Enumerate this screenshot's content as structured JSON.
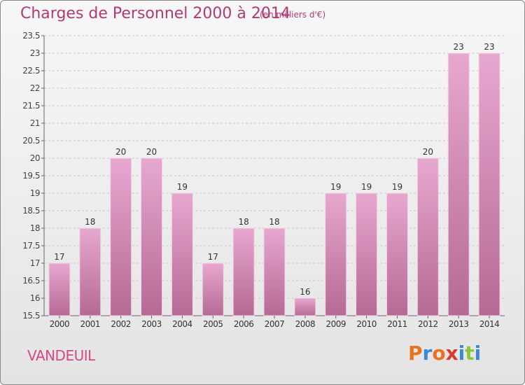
{
  "title": "Charges de Personnel 2000 à 2014",
  "subtitle": "(en milliers d'€)",
  "commune": "VANDEUIL",
  "logo": {
    "text": "Proxiti",
    "colors": [
      "#e8731f",
      "#3a88d8",
      "#e8731f",
      "#d93a2a",
      "#3a88d8",
      "#8cc63f",
      "#3a88d8"
    ]
  },
  "colors": {
    "bar_light": "#e7a8cf",
    "bar_dark": "#b56a93",
    "title": "#b03a72",
    "axis": "#666666"
  },
  "chart_data": {
    "type": "bar",
    "categories": [
      "2000",
      "2001",
      "2002",
      "2003",
      "2004",
      "2005",
      "2006",
      "2007",
      "2008",
      "2009",
      "2010",
      "2011",
      "2012",
      "2013",
      "2014"
    ],
    "values": [
      17,
      18,
      20,
      20,
      19,
      17,
      18,
      18,
      16,
      19,
      19,
      19,
      20,
      23,
      23
    ],
    "ylim": [
      15.5,
      23.5
    ],
    "yticks": [
      15.5,
      16,
      16.5,
      17,
      17.5,
      18,
      18.5,
      19,
      19.5,
      20,
      20.5,
      21,
      21.5,
      22,
      22.5,
      23,
      23.5
    ],
    "ytick_labels": [
      "15.5",
      "16",
      "16.5",
      "17",
      "17.5",
      "18",
      "18.5",
      "19",
      "19.5",
      "20",
      "20.5",
      "21",
      "21.5",
      "22",
      "22.5",
      "23",
      "23.5"
    ],
    "grid": true
  }
}
